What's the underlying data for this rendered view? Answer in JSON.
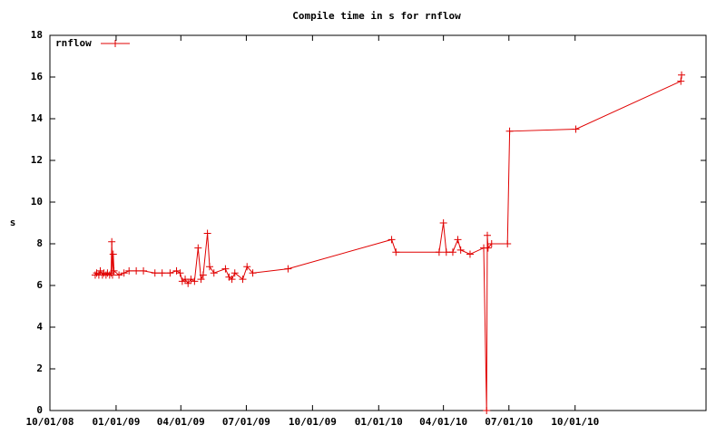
{
  "chart_data": {
    "type": "line",
    "title": "Compile time in s for rnflow",
    "ylabel": "s",
    "legend": "top-left",
    "xlim": [
      "10/01/08",
      "04/01/11"
    ],
    "xticks": [
      "10/01/08",
      "01/01/09",
      "04/01/09",
      "07/01/09",
      "10/01/09",
      "01/01/10",
      "04/01/10",
      "07/01/10",
      "10/01/10"
    ],
    "ylim": [
      0,
      18
    ],
    "yticks": [
      0,
      2,
      4,
      6,
      8,
      10,
      12,
      14,
      16,
      18
    ],
    "x": [
      "12/03/08",
      "12/05/08",
      "12/08/08",
      "12/10/08",
      "12/13/08",
      "12/15/08",
      "12/18/08",
      "12/20/08",
      "12/23/08",
      "12/25/08",
      "12/26/08",
      "12/27/08",
      "12/28/08",
      "12/29/08",
      "01/05/09",
      "01/12/09",
      "01/19/09",
      "01/29/09",
      "02/08/09",
      "02/24/09",
      "03/06/09",
      "03/17/09",
      "03/26/09",
      "03/31/09",
      "04/03/09",
      "04/07/09",
      "04/11/09",
      "04/15/09",
      "04/20/09",
      "04/25/09",
      "04/29/09",
      "05/02/09",
      "05/08/09",
      "05/11/09",
      "05/17/09",
      "06/02/09",
      "06/07/09",
      "06/11/09",
      "06/15/09",
      "06/26/09",
      "07/02/09",
      "07/10/09",
      "08/28/09",
      "01/19/10",
      "01/25/10",
      "03/26/10",
      "04/01/10",
      "04/05/10",
      "04/14/10",
      "04/21/10",
      "04/25/10",
      "05/08/10",
      "05/27/10",
      "05/31/10",
      "06/01/10",
      "06/02/10",
      "06/07/10",
      "06/29/10",
      "07/02/10",
      "10/02/10",
      "02/25/11",
      "02/26/11"
    ],
    "series": [
      {
        "name": "rnflow",
        "color": "#e00000",
        "values": [
          6.5,
          6.6,
          6.5,
          6.7,
          6.5,
          6.6,
          6.5,
          6.6,
          6.5,
          6.6,
          8.1,
          6.5,
          7.5,
          6.7,
          6.5,
          6.6,
          6.7,
          6.7,
          6.7,
          6.6,
          6.6,
          6.6,
          6.7,
          6.6,
          6.2,
          6.3,
          6.1,
          6.3,
          6.2,
          7.8,
          6.3,
          6.5,
          8.5,
          6.9,
          6.6,
          6.8,
          6.4,
          6.3,
          6.6,
          6.3,
          6.9,
          6.6,
          6.8,
          8.2,
          7.6,
          7.6,
          9.0,
          7.6,
          7.6,
          8.2,
          7.7,
          7.5,
          7.8,
          0,
          8.4,
          7.8,
          8.0,
          8.0,
          13.4,
          13.5,
          15.8,
          16.1
        ]
      }
    ]
  }
}
